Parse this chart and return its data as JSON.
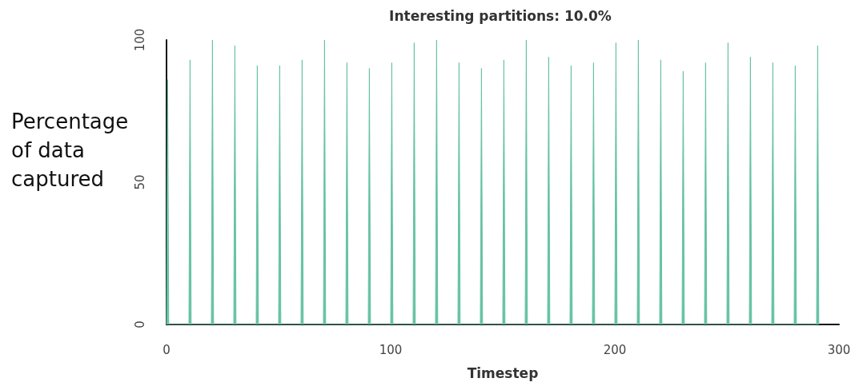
{
  "chart_data": {
    "type": "area",
    "title": "Interesting partitions: 10.0%",
    "xlabel": "Timestep",
    "ylabel": "Percentage\nof data\ncaptured",
    "x": [
      0,
      0.5,
      1,
      10,
      10.5,
      11,
      20,
      20.5,
      21,
      30,
      30.5,
      31,
      40,
      40.5,
      41,
      50,
      50.5,
      51,
      60,
      60.5,
      61,
      70,
      70.5,
      71,
      80,
      80.5,
      81,
      90,
      90.5,
      91,
      100,
      100.5,
      101,
      110,
      110.5,
      111,
      120,
      120.5,
      121,
      130,
      130.5,
      131,
      140,
      140.5,
      141,
      150,
      150.5,
      151,
      160,
      160.5,
      161,
      170,
      170.5,
      171,
      180,
      180.5,
      181,
      190,
      190.5,
      191,
      200,
      200.5,
      201,
      210,
      210.5,
      211,
      220,
      220.5,
      221,
      230,
      230.5,
      231,
      240,
      240.5,
      241,
      250,
      250.5,
      251,
      260,
      260.5,
      261,
      270,
      270.5,
      271,
      280,
      280.5,
      281,
      290,
      290.5,
      291
    ],
    "series": [
      {
        "color": "#66c2a5",
        "values": [
          0,
          86,
          0,
          0,
          93,
          0,
          0,
          100,
          0,
          0,
          98,
          0,
          0,
          91,
          0,
          0,
          91,
          0,
          0,
          93,
          0,
          0,
          100,
          0,
          0,
          92,
          0,
          0,
          90,
          0,
          0,
          92,
          0,
          0,
          99,
          0,
          0,
          100,
          0,
          0,
          92,
          0,
          0,
          90,
          0,
          0,
          93,
          0,
          0,
          100,
          0,
          0,
          94,
          0,
          0,
          91,
          0,
          0,
          92,
          0,
          0,
          99,
          0,
          0,
          100,
          0,
          0,
          93,
          0,
          0,
          89,
          0,
          0,
          92,
          0,
          0,
          99,
          0,
          0,
          94,
          0,
          0,
          92,
          0,
          0,
          91,
          0,
          0,
          98,
          0
        ]
      }
    ],
    "xlim": [
      0,
      300
    ],
    "xticks": [
      0,
      100,
      200,
      300
    ],
    "ylim": [
      0,
      100
    ],
    "yticks": [
      0,
      50,
      100
    ],
    "marker": "none"
  }
}
